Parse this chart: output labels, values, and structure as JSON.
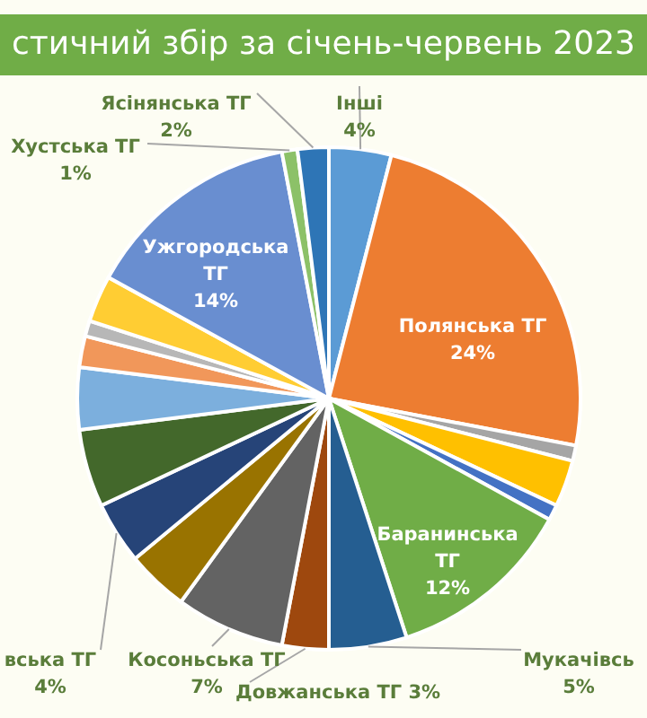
{
  "chart_data": {
    "type": "pie",
    "title": "стичний збір за січень-червень 2023",
    "categories": [
      "Інші",
      "Полянська ТГ",
      null,
      null,
      null,
      "Баранинська ТГ",
      "Мукачівсь",
      "Довжанська ТГ",
      "Косоньська ТГ",
      null,
      "вська ТГ",
      null,
      null,
      null,
      null,
      null,
      "Ужгородська ТГ",
      "Хустська ТГ",
      "Ясінянська ТГ"
    ],
    "values": [
      4,
      24,
      1,
      3,
      1,
      12,
      5,
      3,
      7,
      4,
      4,
      5,
      4,
      2,
      1,
      3,
      14,
      1,
      2
    ],
    "value_labels": [
      "4%",
      "24%",
      null,
      null,
      null,
      "12%",
      "5%",
      "3%",
      "7%",
      null,
      "4%",
      null,
      null,
      null,
      null,
      null,
      "14%",
      "1%",
      "2%"
    ],
    "colors": [
      "#5b9bd5",
      "#ed7d31",
      "#a5a5a5",
      "#ffc000",
      "#4472c4",
      "#70ad47",
      "#255e91",
      "#9e480e",
      "#636363",
      "#997300",
      "#264478",
      "#43682b",
      "#7cafdd",
      "#f1975a",
      "#b7b7b7",
      "#ffcd33",
      "#698ed0",
      "#8cc168",
      "#2e75b6"
    ]
  }
}
